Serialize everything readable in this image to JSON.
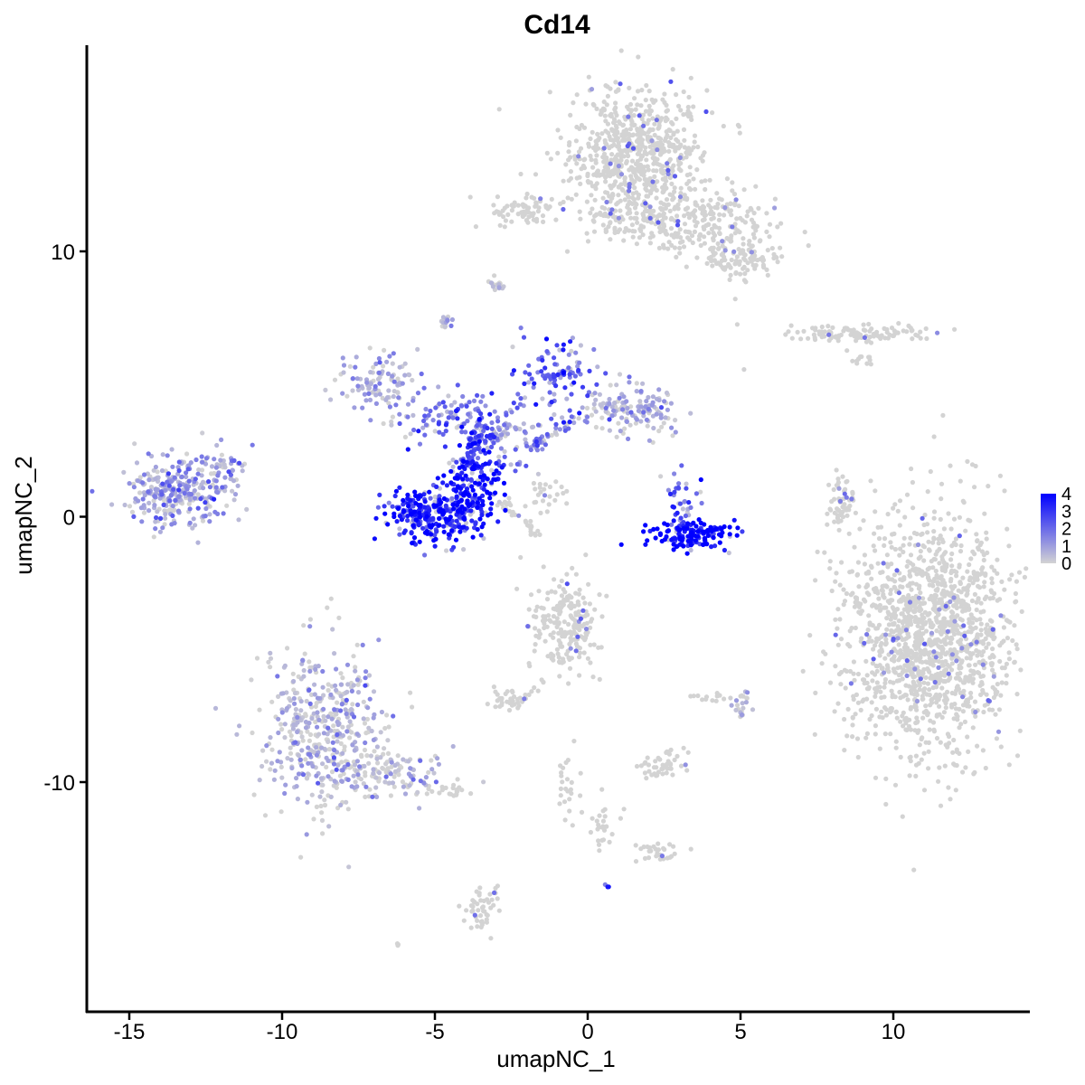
{
  "chart_data": {
    "type": "scatter",
    "title": "Cd14",
    "xlabel": "umapNC_1",
    "ylabel": "umapNC_2",
    "xlim": [
      -16.3,
      14.4
    ],
    "ylim": [
      -18.4,
      17.9
    ],
    "x_ticks": [
      -15,
      -10,
      -5,
      0,
      5,
      10
    ],
    "x_tick_labels": [
      "-15",
      "-10",
      "-5",
      "0",
      "5",
      "10"
    ],
    "y_ticks": [
      -10,
      0,
      10
    ],
    "y_tick_labels": [
      "-10",
      "0",
      "10"
    ],
    "grid": false,
    "legend_position": "right",
    "color_scale": {
      "low_color": "#d3d3d3",
      "high_color": "#0000ff",
      "min": 0,
      "max": 4,
      "ticks": [
        0,
        1,
        2,
        3,
        4
      ],
      "tick_labels": [
        "0",
        "1",
        "2",
        "3",
        "4"
      ]
    },
    "clusters": [
      {
        "cx": 1.5,
        "cy": 13.6,
        "sx": 1.1,
        "sy": 1.2,
        "n": 700,
        "expr_mean": 0.05
      },
      {
        "cx": 3.6,
        "cy": 11.3,
        "sx": 1.2,
        "sy": 0.6,
        "n": 230,
        "expr_mean": 0.08
      },
      {
        "cx": 5.0,
        "cy": 9.8,
        "sx": 0.7,
        "sy": 0.4,
        "n": 120,
        "expr_mean": 0.05
      },
      {
        "cx": -2.2,
        "cy": 11.6,
        "sx": 0.6,
        "sy": 0.3,
        "n": 70,
        "expr_mean": 0.05
      },
      {
        "cx": 0.8,
        "cy": 11.2,
        "sx": 0.7,
        "sy": 0.3,
        "n": 50,
        "expr_mean": 0.05
      },
      {
        "cx": 8.9,
        "cy": 6.9,
        "sx": 1.1,
        "sy": 0.15,
        "n": 110,
        "expr_mean": 0.05
      },
      {
        "cx": 11.2,
        "cy": -4.5,
        "sx": 1.4,
        "sy": 2.2,
        "n": 1500,
        "expr_mean": 0.03
      },
      {
        "cx": -13.4,
        "cy": 0.9,
        "sx": 0.9,
        "sy": 0.6,
        "n": 300,
        "expr_mean": 0.9
      },
      {
        "cx": -11.8,
        "cy": 1.9,
        "sx": 0.4,
        "sy": 0.4,
        "n": 40,
        "expr_mean": 0.7
      },
      {
        "cx": -8.6,
        "cy": -8.0,
        "sx": 1.0,
        "sy": 1.6,
        "n": 450,
        "expr_mean": 0.25
      },
      {
        "cx": -6.6,
        "cy": -9.6,
        "sx": 1.0,
        "sy": 0.4,
        "n": 120,
        "expr_mean": 0.2
      },
      {
        "cx": -4.6,
        "cy": -10.3,
        "sx": 0.5,
        "sy": 0.2,
        "n": 25,
        "expr_mean": 0.1
      },
      {
        "cx": -0.7,
        "cy": -4.0,
        "sx": 0.6,
        "sy": 0.9,
        "n": 200,
        "expr_mean": 0.05
      },
      {
        "cx": -2.6,
        "cy": -6.9,
        "sx": 0.3,
        "sy": 0.2,
        "n": 40,
        "expr_mean": 0.05
      },
      {
        "cx": 2.4,
        "cy": -9.4,
        "sx": 0.4,
        "sy": 0.3,
        "n": 45,
        "expr_mean": 0.1
      },
      {
        "cx": 2.3,
        "cy": -12.6,
        "sx": 0.4,
        "sy": 0.2,
        "n": 30,
        "expr_mean": 0.05
      },
      {
        "cx": -3.4,
        "cy": -14.8,
        "sx": 0.3,
        "sy": 0.5,
        "n": 50,
        "expr_mean": 0.05
      },
      {
        "cx": -6.8,
        "cy": 5.0,
        "sx": 0.6,
        "sy": 0.6,
        "n": 110,
        "expr_mean": 0.6
      },
      {
        "cx": 1.5,
        "cy": 4.0,
        "sx": 0.9,
        "sy": 0.5,
        "n": 150,
        "expr_mean": 0.5
      },
      {
        "cx": -1.0,
        "cy": 5.5,
        "sx": 0.6,
        "sy": 0.7,
        "n": 90,
        "expr_mean": 2.2
      },
      {
        "cx": -2.8,
        "cy": 3.0,
        "sx": 0.8,
        "sy": 0.6,
        "n": 90,
        "expr_mean": 1.2
      },
      {
        "cx": -5.3,
        "cy": 0.0,
        "sx": 0.6,
        "sy": 0.5,
        "n": 230,
        "expr_mean": 3.3
      },
      {
        "cx": -3.9,
        "cy": 0.9,
        "sx": 0.5,
        "sy": 0.8,
        "n": 220,
        "expr_mean": 3.6
      },
      {
        "cx": -4.6,
        "cy": 3.8,
        "sx": 0.8,
        "sy": 0.5,
        "n": 80,
        "expr_mean": 1.8
      },
      {
        "cx": 3.4,
        "cy": -0.7,
        "sx": 0.7,
        "sy": 0.25,
        "n": 150,
        "expr_mean": 4.0
      },
      {
        "cx": 3.1,
        "cy": 0.6,
        "sx": 0.3,
        "sy": 0.6,
        "n": 40,
        "expr_mean": 2.2
      },
      {
        "cx": 8.3,
        "cy": 0.5,
        "sx": 0.2,
        "sy": 0.5,
        "n": 60,
        "expr_mean": 0.05
      },
      {
        "cx": -1.4,
        "cy": 0.8,
        "sx": 0.4,
        "sy": 0.3,
        "n": 25,
        "expr_mean": 0.1
      },
      {
        "cx": -4.7,
        "cy": 7.4,
        "sx": 0.1,
        "sy": 0.2,
        "n": 15,
        "expr_mean": 0.2
      },
      {
        "cx": -2.9,
        "cy": 8.7,
        "sx": 0.1,
        "sy": 0.1,
        "n": 8,
        "expr_mean": 0.5
      },
      {
        "cx": 4.1,
        "cy": -6.8,
        "sx": 0.4,
        "sy": 0.08,
        "n": 15,
        "expr_mean": 0.05
      },
      {
        "cx": 5.0,
        "cy": -7.2,
        "sx": 0.15,
        "sy": 0.3,
        "n": 20,
        "expr_mean": 0.3
      },
      {
        "cx": 0.4,
        "cy": -11.4,
        "sx": 0.3,
        "sy": 0.5,
        "n": 25,
        "expr_mean": 0.1
      },
      {
        "cx": -0.6,
        "cy": -10.2,
        "sx": 0.2,
        "sy": 0.6,
        "n": 25,
        "expr_mean": 0.05
      },
      {
        "cx": 9.0,
        "cy": 6.0,
        "sx": 0.3,
        "sy": 0.2,
        "n": 12,
        "expr_mean": 0.05
      },
      {
        "cx": 0.6,
        "cy": -13.9,
        "sx": 0.05,
        "sy": 0.05,
        "n": 3,
        "expr_mean": 3.0
      },
      {
        "cx": -6.2,
        "cy": -16.1,
        "sx": 0.05,
        "sy": 0.05,
        "n": 3,
        "expr_mean": 0.0
      }
    ],
    "bridges": [
      {
        "from": [
          -3.0,
          0.8
        ],
        "to": [
          -1.5,
          -0.8
        ],
        "n": 30,
        "expr_mean": 0.05
      },
      {
        "from": [
          -4.0,
          2.0
        ],
        "to": [
          -2.2,
          4.5
        ],
        "n": 40,
        "expr_mean": 2.0
      },
      {
        "from": [
          -2.0,
          2.5
        ],
        "to": [
          -0.2,
          3.8
        ],
        "n": 35,
        "expr_mean": 1.5
      },
      {
        "from": [
          -0.5,
          -5.0
        ],
        "to": [
          -1.9,
          -6.8
        ],
        "n": 15,
        "expr_mean": 0.05
      },
      {
        "from": [
          -3.5,
          3.8
        ],
        "to": [
          -3.8,
          1.8
        ],
        "n": 40,
        "expr_mean": 2.5
      },
      {
        "from": [
          -2.9,
          9.0
        ],
        "to": [
          -3.1,
          8.6
        ],
        "n": 8,
        "expr_mean": 0.3
      }
    ]
  }
}
